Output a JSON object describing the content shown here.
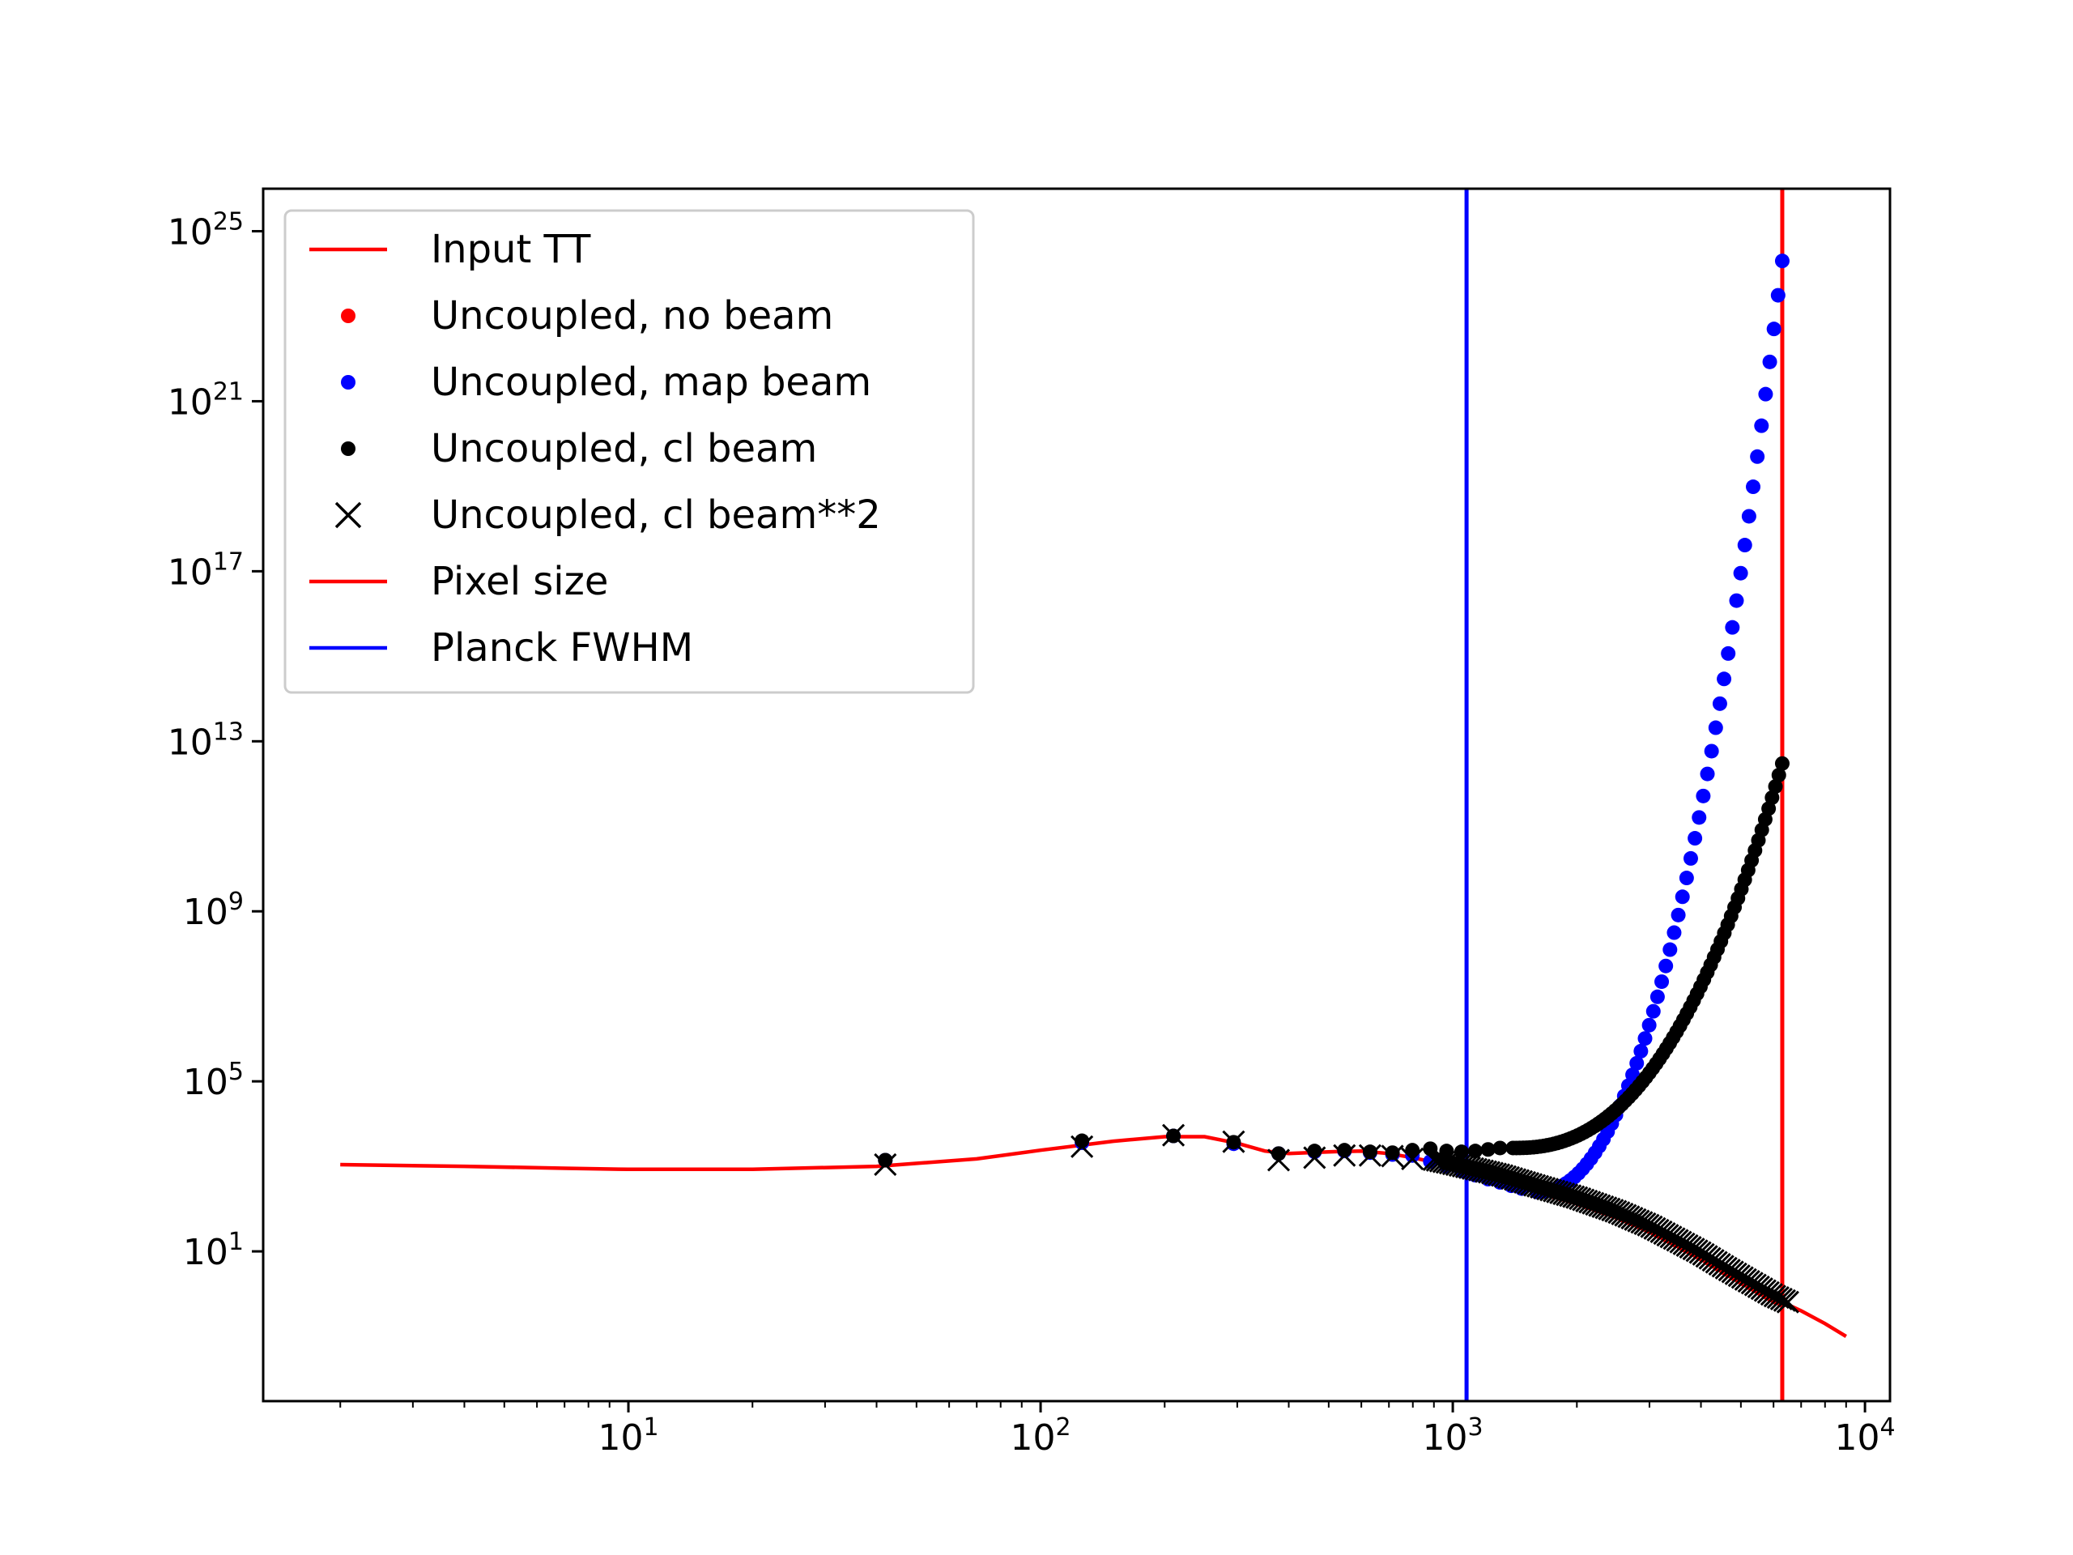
{
  "chart_data": {
    "type": "scatter",
    "title": "",
    "xlabel": "",
    "ylabel": "",
    "xscale": "log",
    "yscale": "log",
    "xlim": [
      1.3,
      11500
    ],
    "ylim": [
      0.003,
      1e+26
    ],
    "grid": false,
    "legend_position": "upper-left",
    "x_ticks": [
      {
        "value": 10,
        "base": "10",
        "exp": "1"
      },
      {
        "value": 100,
        "base": "10",
        "exp": "2"
      },
      {
        "value": 1000,
        "base": "10",
        "exp": "3"
      },
      {
        "value": 10000,
        "base": "10",
        "exp": "4"
      }
    ],
    "y_ticks": [
      {
        "value": 10,
        "base": "10",
        "exp": "1"
      },
      {
        "value": 100000,
        "base": "10",
        "exp": "5"
      },
      {
        "value": 1000000000.0,
        "base": "10",
        "exp": "9"
      },
      {
        "value": 10000000000000.0,
        "base": "10",
        "exp": "13"
      },
      {
        "value": 1e+17,
        "base": "10",
        "exp": "17"
      },
      {
        "value": 1e+21,
        "base": "10",
        "exp": "21"
      },
      {
        "value": 1e+25,
        "base": "10",
        "exp": "25"
      }
    ],
    "colors": {
      "red": "#ff0000",
      "blue": "#0000ff",
      "black": "#000000"
    },
    "series": [
      {
        "name": "Input TT",
        "kind": "line",
        "color": "#ff0000",
        "x": [
          2,
          4,
          7,
          10,
          20,
          40,
          70,
          100,
          150,
          200,
          250,
          300,
          350,
          400,
          500,
          600,
          700,
          800,
          1000,
          1300,
          1600,
          2000,
          2500,
          3000,
          3500,
          4000,
          4500,
          5000,
          5500,
          6000,
          7000,
          8000,
          9000
        ],
        "y": [
          1100,
          1000,
          900,
          850,
          850,
          1000,
          1500,
          2400,
          3900,
          5000,
          5000,
          3500,
          2300,
          2000,
          2200,
          2300,
          2000,
          1600,
          1000,
          550,
          300,
          160,
          75,
          35,
          16,
          8,
          4,
          2.2,
          1.3,
          0.8,
          0.4,
          0.2,
          0.1
        ]
      },
      {
        "name": "Uncoupled, no beam",
        "kind": "markers",
        "marker": "dot",
        "color": "#ff0000",
        "sampling": "log-uniform",
        "x_range": [
          1100,
          6300
        ],
        "count": 60,
        "curve": "input"
      },
      {
        "name": "Uncoupled, map beam",
        "kind": "markers",
        "marker": "dot",
        "color": "#0000ff",
        "sampling": "log-uniform",
        "x_range": [
          1600,
          6300
        ],
        "count": 60,
        "y_end": 2e+24,
        "x_points": [
          42,
          126,
          210,
          294,
          378,
          462,
          546,
          630,
          714,
          798,
          882,
          966,
          1050,
          1134,
          1218,
          1302,
          1386,
          1470
        ],
        "y_points": [
          1400,
          3600,
          5200,
          3400,
          2000,
          2200,
          2300,
          2100,
          1900,
          1800,
          1300,
          1000,
          780,
          620,
          500,
          420,
          350,
          300
        ]
      },
      {
        "name": "Uncoupled, cl beam",
        "kind": "markers",
        "marker": "dot",
        "color": "#000000",
        "sampling": "log-uniform",
        "x_range": [
          1400,
          6300
        ],
        "count": 80,
        "y_end": 3000000000000.0,
        "x_points": [
          42,
          126,
          210,
          294,
          378,
          462,
          546,
          630,
          714,
          798,
          882,
          966,
          1050,
          1134,
          1218,
          1302
        ],
        "y_points": [
          1400,
          4000,
          5200,
          3700,
          2000,
          2300,
          2400,
          2200,
          2100,
          2400,
          2600,
          2300,
          2200,
          2300,
          2500,
          2700
        ]
      },
      {
        "name": "Uncoupled, cl beam**2",
        "kind": "markers",
        "marker": "x",
        "color": "#000000",
        "sampling": "log-uniform",
        "x_range": [
          900,
          6500
        ],
        "count": 110,
        "curve": "input",
        "x_points": [
          42,
          126,
          210,
          294,
          378,
          462,
          546,
          630,
          714,
          798
        ],
        "y_points": [
          1100,
          2900,
          5400,
          3800,
          1400,
          1600,
          1800,
          1800,
          1750,
          1500
        ]
      }
    ],
    "vlines": [
      {
        "name": "Pixel size",
        "x": 6300,
        "color": "#ff0000"
      },
      {
        "name": "Planck FWHM",
        "x": 1080,
        "color": "#0000ff"
      }
    ],
    "legend": [
      {
        "label": "Input TT",
        "symbol": "line",
        "color": "#ff0000"
      },
      {
        "label": "Uncoupled, no beam",
        "symbol": "dot",
        "color": "#ff0000"
      },
      {
        "label": "Uncoupled, map beam",
        "symbol": "dot",
        "color": "#0000ff"
      },
      {
        "label": "Uncoupled, cl beam",
        "symbol": "dot",
        "color": "#000000"
      },
      {
        "label": "Uncoupled, cl beam**2",
        "symbol": "x",
        "color": "#000000"
      },
      {
        "label": "Pixel size",
        "symbol": "line",
        "color": "#ff0000"
      },
      {
        "label": "Planck FWHM",
        "symbol": "line",
        "color": "#0000ff"
      }
    ]
  }
}
